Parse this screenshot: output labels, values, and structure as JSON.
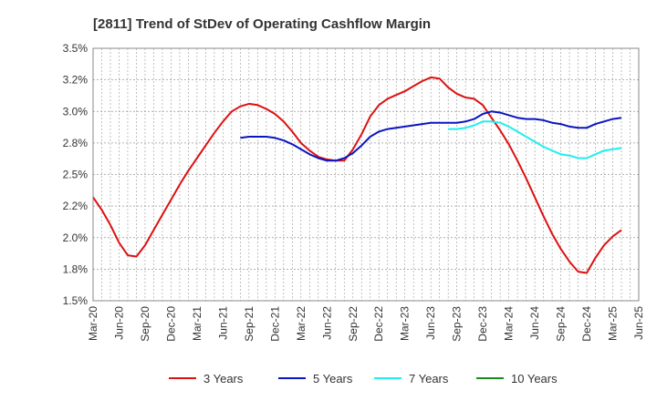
{
  "chart_data": {
    "type": "line",
    "title": "[2811]  Trend of StDev of Operating Cashflow Margin",
    "xlabel": "",
    "ylabel": "",
    "ylim": [
      1.5,
      3.5
    ],
    "y_ticks": [
      "1.5%",
      "1.8%",
      "2.0%",
      "2.2%",
      "2.5%",
      "2.8%",
      "3.0%",
      "3.2%",
      "3.5%"
    ],
    "x_ticks": [
      "Mar-20",
      "Jun-20",
      "Sep-20",
      "Dec-20",
      "Mar-21",
      "Jun-21",
      "Sep-21",
      "Dec-21",
      "Mar-22",
      "Jun-22",
      "Sep-22",
      "Dec-22",
      "Mar-23",
      "Jun-23",
      "Sep-23",
      "Dec-23",
      "Mar-24",
      "Jun-24",
      "Sep-24",
      "Dec-24",
      "Mar-25",
      "Jun-25"
    ],
    "grid": true,
    "legend_position": "bottom",
    "series": [
      {
        "name": "3 Years",
        "color": "#dd1111",
        "points": [
          [
            "Mar-20",
            2.32
          ],
          [
            "Apr-20",
            2.22
          ],
          [
            "May-20",
            2.1
          ],
          [
            "Jun-20",
            1.96
          ],
          [
            "Jul-20",
            1.86
          ],
          [
            "Aug-20",
            1.85
          ],
          [
            "Sep-20",
            1.94
          ],
          [
            "Oct-20",
            2.06
          ],
          [
            "Nov-20",
            2.18
          ],
          [
            "Dec-20",
            2.3
          ],
          [
            "Jan-21",
            2.42
          ],
          [
            "Feb-21",
            2.53
          ],
          [
            "Mar-21",
            2.63
          ],
          [
            "Apr-21",
            2.73
          ],
          [
            "May-21",
            2.83
          ],
          [
            "Jun-21",
            2.92
          ],
          [
            "Jul-21",
            3.0
          ],
          [
            "Aug-21",
            3.04
          ],
          [
            "Sep-21",
            3.06
          ],
          [
            "Oct-21",
            3.05
          ],
          [
            "Nov-21",
            3.02
          ],
          [
            "Dec-21",
            2.98
          ],
          [
            "Jan-22",
            2.92
          ],
          [
            "Feb-22",
            2.84
          ],
          [
            "Mar-22",
            2.75
          ],
          [
            "Apr-22",
            2.69
          ],
          [
            "May-22",
            2.64
          ],
          [
            "Jun-22",
            2.62
          ],
          [
            "Jul-22",
            2.61
          ],
          [
            "Aug-22",
            2.61
          ],
          [
            "Sep-22",
            2.7
          ],
          [
            "Oct-22",
            2.82
          ],
          [
            "Nov-22",
            2.96
          ],
          [
            "Dec-22",
            3.05
          ],
          [
            "Jan-23",
            3.1
          ],
          [
            "Feb-23",
            3.13
          ],
          [
            "Mar-23",
            3.16
          ],
          [
            "Apr-23",
            3.2
          ],
          [
            "May-23",
            3.24
          ],
          [
            "Jun-23",
            3.27
          ],
          [
            "Jul-23",
            3.26
          ],
          [
            "Aug-23",
            3.19
          ],
          [
            "Sep-23",
            3.14
          ],
          [
            "Oct-23",
            3.11
          ],
          [
            "Nov-23",
            3.1
          ],
          [
            "Dec-23",
            3.05
          ],
          [
            "Jan-24",
            2.95
          ],
          [
            "Feb-24",
            2.85
          ],
          [
            "Mar-24",
            2.74
          ],
          [
            "Apr-24",
            2.61
          ],
          [
            "May-24",
            2.47
          ],
          [
            "Jun-24",
            2.32
          ],
          [
            "Jul-24",
            2.17
          ],
          [
            "Aug-24",
            2.03
          ],
          [
            "Sep-24",
            1.91
          ],
          [
            "Oct-24",
            1.81
          ],
          [
            "Nov-24",
            1.73
          ],
          [
            "Dec-24",
            1.72
          ],
          [
            "Jan-25",
            1.84
          ],
          [
            "Feb-25",
            1.94
          ],
          [
            "Mar-25",
            2.01
          ],
          [
            "Apr-25",
            2.06
          ]
        ]
      },
      {
        "name": "5 Years",
        "color": "#0a16c0",
        "points": [
          [
            "Aug-21",
            2.79
          ],
          [
            "Sep-21",
            2.8
          ],
          [
            "Oct-21",
            2.8
          ],
          [
            "Nov-21",
            2.8
          ],
          [
            "Dec-21",
            2.79
          ],
          [
            "Jan-22",
            2.77
          ],
          [
            "Feb-22",
            2.74
          ],
          [
            "Mar-22",
            2.7
          ],
          [
            "Apr-22",
            2.66
          ],
          [
            "May-22",
            2.63
          ],
          [
            "Jun-22",
            2.61
          ],
          [
            "Jul-22",
            2.61
          ],
          [
            "Aug-22",
            2.63
          ],
          [
            "Sep-22",
            2.67
          ],
          [
            "Oct-22",
            2.73
          ],
          [
            "Nov-22",
            2.8
          ],
          [
            "Dec-22",
            2.84
          ],
          [
            "Jan-23",
            2.86
          ],
          [
            "Feb-23",
            2.87
          ],
          [
            "Mar-23",
            2.88
          ],
          [
            "Apr-23",
            2.89
          ],
          [
            "May-23",
            2.9
          ],
          [
            "Jun-23",
            2.91
          ],
          [
            "Jul-23",
            2.91
          ],
          [
            "Aug-23",
            2.91
          ],
          [
            "Sep-23",
            2.91
          ],
          [
            "Oct-23",
            2.92
          ],
          [
            "Nov-23",
            2.94
          ],
          [
            "Dec-23",
            2.98
          ],
          [
            "Jan-24",
            3.0
          ],
          [
            "Feb-24",
            2.99
          ],
          [
            "Mar-24",
            2.97
          ],
          [
            "Apr-24",
            2.95
          ],
          [
            "May-24",
            2.94
          ],
          [
            "Jun-24",
            2.94
          ],
          [
            "Jul-24",
            2.93
          ],
          [
            "Aug-24",
            2.91
          ],
          [
            "Sep-24",
            2.9
          ],
          [
            "Oct-24",
            2.88
          ],
          [
            "Nov-24",
            2.87
          ],
          [
            "Dec-24",
            2.87
          ],
          [
            "Jan-25",
            2.9
          ],
          [
            "Feb-25",
            2.92
          ],
          [
            "Mar-25",
            2.94
          ],
          [
            "Apr-25",
            2.95
          ]
        ]
      },
      {
        "name": "7 Years",
        "color": "#22eeee",
        "points": [
          [
            "Aug-23",
            2.86
          ],
          [
            "Sep-23",
            2.86
          ],
          [
            "Oct-23",
            2.87
          ],
          [
            "Nov-23",
            2.89
          ],
          [
            "Dec-23",
            2.92
          ],
          [
            "Jan-24",
            2.92
          ],
          [
            "Feb-24",
            2.91
          ],
          [
            "Mar-24",
            2.88
          ],
          [
            "Apr-24",
            2.84
          ],
          [
            "May-24",
            2.8
          ],
          [
            "Jun-24",
            2.76
          ],
          [
            "Jul-24",
            2.72
          ],
          [
            "Aug-24",
            2.69
          ],
          [
            "Sep-24",
            2.66
          ],
          [
            "Oct-24",
            2.65
          ],
          [
            "Nov-24",
            2.63
          ],
          [
            "Dec-24",
            2.63
          ],
          [
            "Jan-25",
            2.66
          ],
          [
            "Feb-25",
            2.69
          ],
          [
            "Mar-25",
            2.7
          ],
          [
            "Apr-25",
            2.71
          ]
        ]
      },
      {
        "name": "10 Years",
        "color": "#1a8a1a",
        "points": []
      }
    ]
  }
}
